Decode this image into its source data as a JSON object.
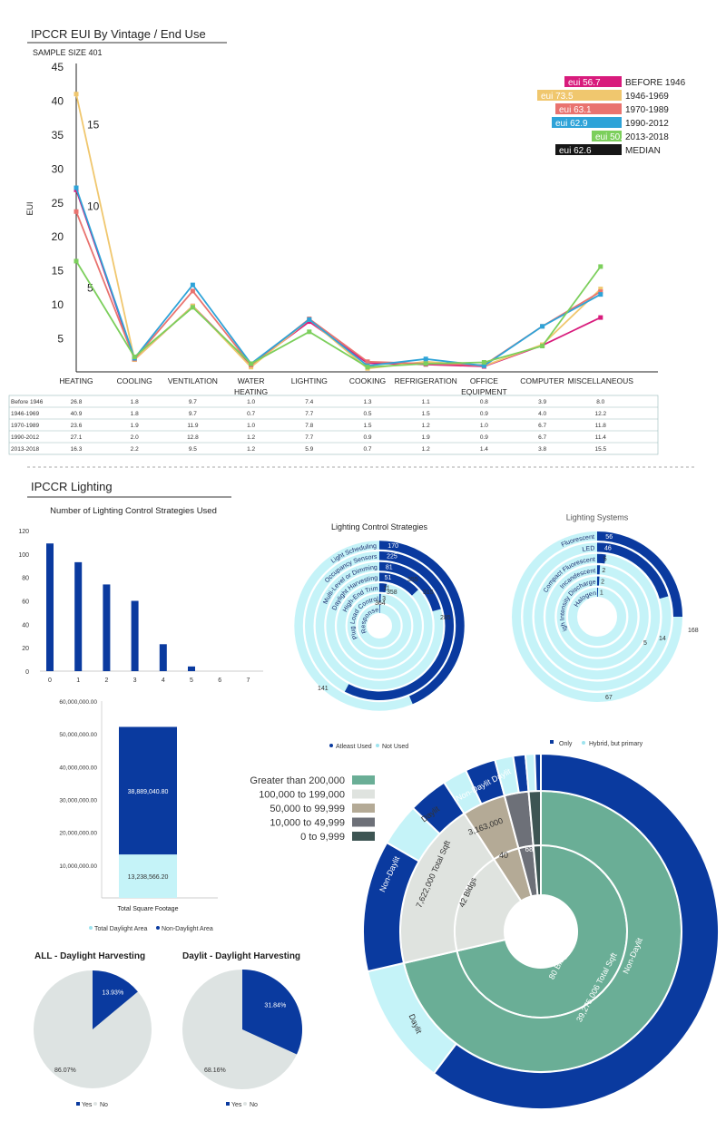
{
  "header": {
    "title": "IPCCR EUI By Vintage / End Use",
    "sample_size": "SAMPLE SIZE 401"
  },
  "colors": {
    "blue": "#0a3a9f",
    "light_cyan": "#c5f3f8",
    "grey_pie": "#dde3e2",
    "green": "#6aae96",
    "pale": "#dfe3df",
    "tan": "#b4aa96",
    "slate": "#6d7078",
    "dark": "#3d5553"
  },
  "chart_data": [
    {
      "id": "eui_lines",
      "type": "line",
      "title": "IPCCR EUI By Vintage / End Use",
      "ylabel": "EUI",
      "ylim": [
        0,
        45
      ],
      "yticks": [
        5,
        10,
        15,
        20,
        25,
        30,
        35,
        40,
        45
      ],
      "secondary_ticks": [
        {
          "label": "15",
          "y": 36.5
        },
        {
          "label": "10",
          "y": 24.5
        },
        {
          "label": "5",
          "y": 12.5
        }
      ],
      "categories": [
        [
          "HEATING"
        ],
        [
          "COOLING"
        ],
        [
          "VENTILATION"
        ],
        [
          "WATER",
          "HEATING"
        ],
        [
          "LIGHTING"
        ],
        [
          "COOKING"
        ],
        [
          "REFRIGERATION"
        ],
        [
          "OFFICE",
          "EQUIPMENT"
        ],
        [
          "COMPUTER"
        ],
        [
          "MISCELLANEOUS"
        ]
      ],
      "series": [
        {
          "name": "BEFORE 1946",
          "eui": "eui 56.7",
          "color": "#d81b7c",
          "values": [
            26.8,
            1.8,
            9.7,
            1.0,
            7.4,
            1.3,
            1.1,
            0.8,
            3.9,
            8.0
          ]
        },
        {
          "name": "1946-1969",
          "eui": "eui 73.5",
          "color": "#f0c76e",
          "values": [
            40.9,
            1.8,
            9.7,
            0.7,
            7.7,
            0.5,
            1.5,
            0.9,
            4.0,
            12.2
          ]
        },
        {
          "name": "1970-1989",
          "eui": "eui 63.1",
          "color": "#e9736f",
          "values": [
            23.6,
            1.9,
            11.9,
            1.0,
            7.8,
            1.5,
            1.2,
            1.0,
            6.7,
            11.8
          ]
        },
        {
          "name": "1990-2012",
          "eui": "eui 62.9",
          "color": "#2ea3d8",
          "values": [
            27.1,
            2.0,
            12.8,
            1.2,
            7.7,
            0.9,
            1.9,
            0.9,
            6.7,
            11.4
          ]
        },
        {
          "name": "2013-2018",
          "eui": "eui 50.0",
          "color": "#7ccf5c",
          "values": [
            16.3,
            2.2,
            9.5,
            1.2,
            5.9,
            0.7,
            1.2,
            1.4,
            3.8,
            15.5
          ]
        }
      ],
      "median": {
        "name": "MEDIAN",
        "eui": "eui 62.6",
        "color": "#161616"
      },
      "table_rows": [
        [
          "Before 1946",
          "26.8",
          "1.8",
          "9.7",
          "1.0",
          "7.4",
          "1.3",
          "1.1",
          "0.8",
          "3.9",
          "8.0"
        ],
        [
          "1946-1969",
          "40.9",
          "1.8",
          "9.7",
          "0.7",
          "7.7",
          "0.5",
          "1.5",
          "0.9",
          "4.0",
          "12.2"
        ],
        [
          "1970-1989",
          "23.6",
          "1.9",
          "11.9",
          "1.0",
          "7.8",
          "1.5",
          "1.2",
          "1.0",
          "6.7",
          "11.8"
        ],
        [
          "1990-2012",
          "27.1",
          "2.0",
          "12.8",
          "1.2",
          "7.7",
          "0.9",
          "1.9",
          "0.9",
          "6.7",
          "11.4"
        ],
        [
          "2013-2018",
          "16.3",
          "2.2",
          "9.5",
          "1.2",
          "5.9",
          "0.7",
          "1.2",
          "1.4",
          "3.8",
          "15.5"
        ]
      ]
    },
    {
      "id": "control_count_bars",
      "type": "bar",
      "section_title": "IPCCR Lighting",
      "title": "Number of Lighting Control Strategies Used",
      "categories": [
        "0",
        "1",
        "2",
        "3",
        "4",
        "5",
        "6",
        "7"
      ],
      "values": [
        109,
        93,
        74,
        60,
        23,
        4,
        0,
        0
      ],
      "ylim": [
        0,
        120
      ],
      "yticks": [
        "0",
        "20",
        "40",
        "60",
        "80",
        "100",
        "120"
      ]
    },
    {
      "id": "control_rings",
      "type": "pie",
      "title": "Lighting Control Strategies",
      "total": 390,
      "rings": [
        {
          "label": "Light Scheduling",
          "used": 170,
          "not_used": 220,
          "used_label": "",
          "count_label": "170"
        },
        {
          "label": "Occupancy Sensors",
          "used": 225,
          "not_used": 165,
          "used_label": "196",
          "count_label": "225"
        },
        {
          "label": "Multi-Level or Dimming",
          "used": 81,
          "not_used": 309,
          "used_label": "",
          "count_label": "81"
        },
        {
          "label": "Daylight Harvesting",
          "used": 51,
          "not_used": 339,
          "used_label": "",
          "count_label": "51"
        },
        {
          "label": "High-End Trim",
          "used": 11,
          "not_used": 379,
          "used_label": "",
          "count_label": "11"
        },
        {
          "label": "Plug Load Control",
          "used": 3,
          "not_used": 387,
          "used_label": "",
          "count_label": "3"
        },
        {
          "label": "Demand Response",
          "used": 1,
          "not_used": 389,
          "used_label": "",
          "count_label": ""
        }
      ],
      "extra_labels": [
        "141",
        "285",
        "315",
        "355",
        "358",
        "364"
      ],
      "legend": [
        "Atleast Used",
        "Not Used"
      ]
    },
    {
      "id": "systems_rings",
      "type": "pie",
      "title": "Lighting Systems",
      "total": 224,
      "rings": [
        {
          "label": "Fluorescent",
          "only": 56,
          "hybrid": 168,
          "count_label": "56"
        },
        {
          "label": "LED",
          "only": 46,
          "hybrid": 178,
          "count_label": "46"
        },
        {
          "label": "Compact Fluorescent",
          "only": 5,
          "hybrid": 219,
          "count_label": "5"
        },
        {
          "label": "Incandescent",
          "only": 2,
          "hybrid": 222,
          "count_label": "2"
        },
        {
          "label": "High Intensity Discharge",
          "only": 2,
          "hybrid": 222,
          "count_label": "2"
        },
        {
          "label": "Halogen",
          "only": 1,
          "hybrid": 223,
          "count_label": "1"
        }
      ],
      "extra_labels": [
        "168",
        "67",
        "14",
        "5"
      ],
      "legend": [
        "Only",
        "Hybrid, but primary"
      ]
    },
    {
      "id": "sqft_stacked",
      "type": "bar",
      "category": "Total Square Footage",
      "series": [
        {
          "name": "Total Daylight Area",
          "value": 13238566.2,
          "label": "13,238,566.20",
          "color": "#c5f3f8"
        },
        {
          "name": "Non-Daylight Area",
          "value": 38889040.8,
          "label": "38,889,040.80",
          "color": "#0a3a9f"
        }
      ],
      "ylim": [
        0,
        60000000
      ],
      "yticks": [
        "10,000,000.00",
        "20,000,000.00",
        "30,000,000.00",
        "40,000,000.00",
        "50,000,000.00",
        "60,000,000.00"
      ]
    },
    {
      "id": "pie_all",
      "type": "pie",
      "title": "ALL - Daylight Harvesting",
      "slices": [
        {
          "name": "Yes",
          "value": 13.93,
          "label": "13.93%"
        },
        {
          "name": "No",
          "value": 86.07,
          "label": "86.07%"
        }
      ],
      "legend": [
        "Yes",
        "No"
      ]
    },
    {
      "id": "pie_daylit",
      "type": "pie",
      "title": "Daylit - Daylight Harvesting",
      "slices": [
        {
          "name": "Yes",
          "value": 31.84,
          "label": "31.84%"
        },
        {
          "name": "No",
          "value": 68.16,
          "label": "68.16%"
        }
      ],
      "legend": [
        "Yes",
        "No"
      ]
    },
    {
      "id": "sunburst",
      "type": "pie",
      "legend": [
        "Greater than 200,000",
        "100,000 to 199,000",
        "50,000 to 99,999",
        "10,000 to 49,999",
        "0 to 9,999"
      ],
      "categories": [
        {
          "name": "Greater than 200,000",
          "bldgs": 80,
          "bldgs_label": "80 Bldgs",
          "sqft": 39275006,
          "sqft_label": "39,275,006 Total Sqft",
          "daylit_label": "Daylit",
          "nondaylit_label": "Non-Daylit"
        },
        {
          "name": "100,000 to 199,000",
          "bldgs": 42,
          "bldgs_label": "42 Bldgs",
          "sqft": 7622000,
          "sqft_label": "7,622,000 Total Sqft",
          "daylit_label": "Daylit",
          "nondaylit_label": "Non-Daylit"
        },
        {
          "name": "50,000 to 99,999",
          "bldgs": 40,
          "bldgs_label": "40",
          "sqft": 3163000,
          "sqft_label": "3,163,000",
          "daylit_label": "",
          "nondaylit_label": "Non-Daylit Daylit"
        },
        {
          "name": "10,000 to 49,999",
          "bldgs": 68,
          "bldgs_label": "68",
          "sqft": 1000000,
          "sqft_label": "",
          "daylit_label": "",
          "nondaylit_label": ""
        },
        {
          "name": "0 to 9,999",
          "bldgs": 12,
          "bldgs_label": "",
          "sqft": 200000,
          "sqft_label": "",
          "daylit_label": "",
          "nondaylit_label": ""
        }
      ]
    }
  ]
}
